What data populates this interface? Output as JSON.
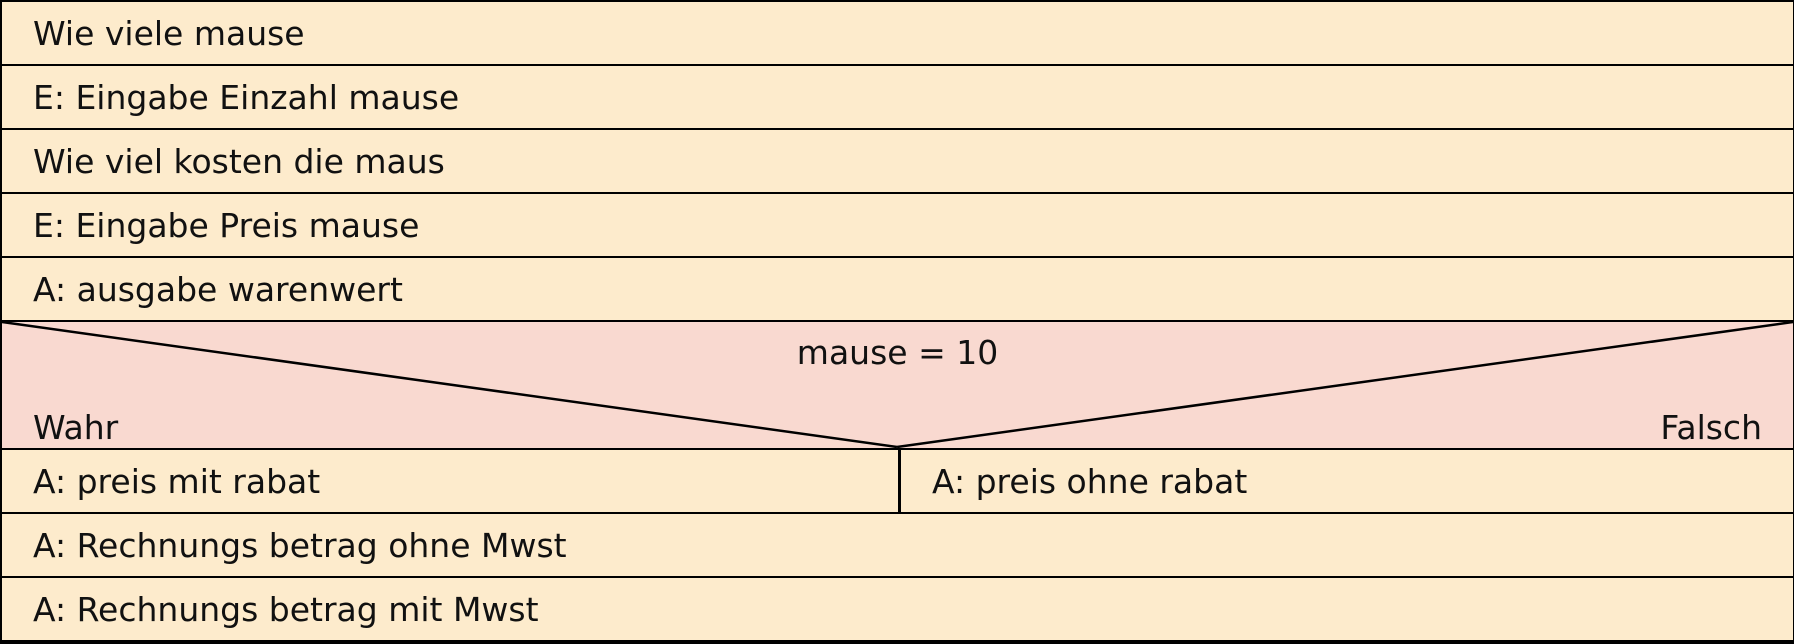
{
  "diagram": {
    "statements_before": [
      "Wie viele mause",
      "E: Eingabe Einzahl mause",
      "Wie viel kosten die maus",
      "E: Eingabe Preis mause",
      "A: ausgabe warenwert"
    ],
    "decision": {
      "condition": "mause = 10",
      "true_label": "Wahr",
      "false_label": "Falsch",
      "true_branch": "A: preis mit rabat",
      "false_branch": "A: preis ohne rabat"
    },
    "statements_after": [
      "A: Rechnungs betrag ohne Mwst",
      "A: Rechnungs betrag mit Mwst"
    ],
    "colors": {
      "statement_fill": "#fdebcc",
      "decision_fill": "#f9d9d0",
      "border": "#000000"
    }
  }
}
